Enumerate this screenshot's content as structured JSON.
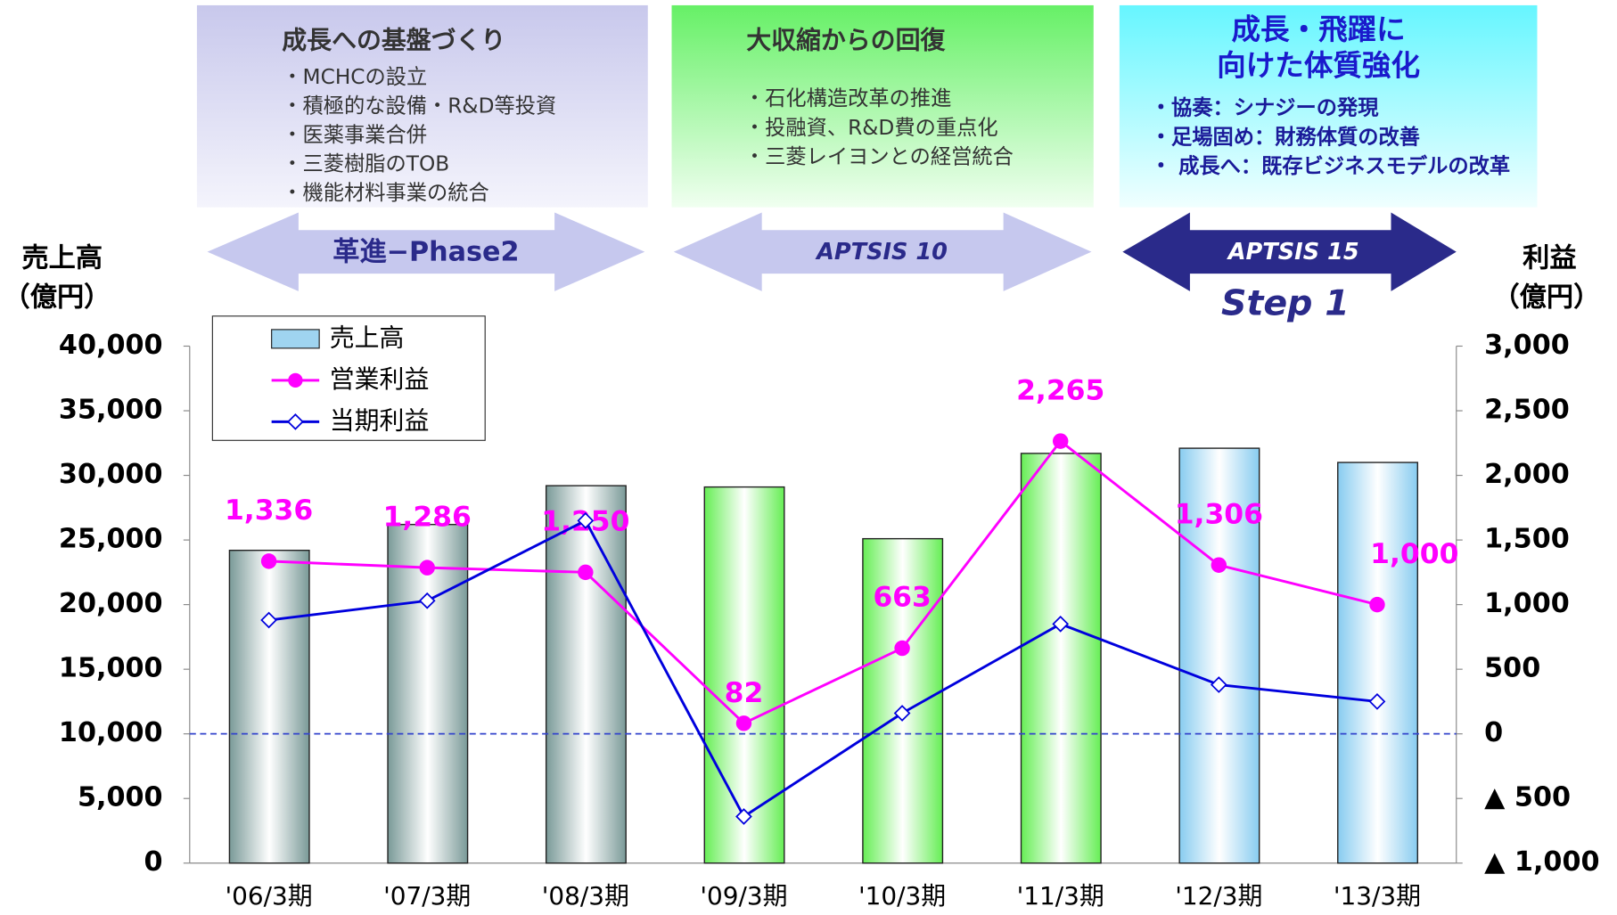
{
  "chart_data": {
    "type": "bar",
    "categories": [
      "'06/3期",
      "'07/3期",
      "'08/3期",
      "'09/3期",
      "'10/3期",
      "'11/3期",
      "'12/3期",
      "'13/3期"
    ],
    "y_label": "売上高",
    "y_unit": "（億円）",
    "y2_label": "利益",
    "y2_unit": "（億円）",
    "ylim": [
      0,
      40000
    ],
    "yticks": [
      0,
      {
        "value": 5000,
        "label": "5,000"
      },
      {
        "value": 10000,
        "label": "10,000"
      },
      {
        "value": 15000,
        "label": "15,000"
      },
      {
        "value": 20000,
        "label": "20,000"
      },
      {
        "value": 25000,
        "label": "25,000"
      },
      {
        "value": 30000,
        "label": "30,000"
      },
      {
        "value": 35000,
        "label": "35,000"
      },
      {
        "value": 40000,
        "label": "40,000"
      }
    ],
    "y2lim": [
      -1000,
      3000
    ],
    "y2ticks": [
      {
        "value": -1000,
        "label": "▲ 1,000"
      },
      {
        "value": -500,
        "label": "▲ 500"
      },
      0,
      500,
      {
        "value": 1000,
        "label": "1,000"
      },
      {
        "value": 1500,
        "label": "1,500"
      },
      {
        "value": 2000,
        "label": "2,000"
      },
      {
        "value": 2500,
        "label": "2,500"
      },
      {
        "value": 3000,
        "label": "3,000"
      }
    ],
    "zero_line": 0,
    "series": [
      {
        "name": "売上高",
        "type": "bar",
        "color": "#9fd4f0",
        "colors": [
          "#7a9a98",
          "#7a9a98",
          "#7a9a98",
          "#66ee55",
          "#66ee55",
          "#66ee55",
          "#88ccf0",
          "#88ccf0"
        ],
        "values": [
          24200,
          26200,
          29200,
          29100,
          25100,
          31700,
          32100,
          31000
        ]
      },
      {
        "name": "営業利益",
        "type": "line",
        "axis": "y2",
        "color": "#ff00ff",
        "marker": "circle",
        "values": [
          1336,
          1286,
          1250,
          82,
          663,
          2265,
          1306,
          1000
        ],
        "value_labels": [
          "1,336",
          "1,286",
          "1,250",
          "82",
          "663",
          "2,265",
          "1,306",
          "1,000"
        ]
      },
      {
        "name": "当期利益",
        "type": "line",
        "axis": "y2",
        "color": "#0000dd",
        "marker": "diamond",
        "values": [
          880,
          1030,
          1650,
          -640,
          160,
          850,
          380,
          250
        ]
      }
    ]
  },
  "phases": [
    {
      "title": [
        "成長への基盤づくり"
      ],
      "items": [
        "・MCHCの設立",
        "・積極的な設備・R&D等投資",
        "・医薬事業合併",
        "・三菱樹脂のTOB",
        "・機能材料事業の統合"
      ],
      "arrow": "革進−Phase2"
    },
    {
      "title": [
        "大収縮からの回復"
      ],
      "items": [
        "・石化構造改革の推進",
        "・投融資、R&D費の重点化",
        "・三菱レイヨンとの経営統合"
      ],
      "arrow": "APTSIS 10"
    },
    {
      "title": [
        "成長・飛躍に",
        "向けた体質強化"
      ],
      "items": [
        "・協奏：シナジーの発現",
        "・足場固め：財務体質の改善",
        "・ 成長へ：既存ビジネスモデルの改革"
      ],
      "arrow": "APTSIS 15",
      "step": "Step 1"
    }
  ]
}
